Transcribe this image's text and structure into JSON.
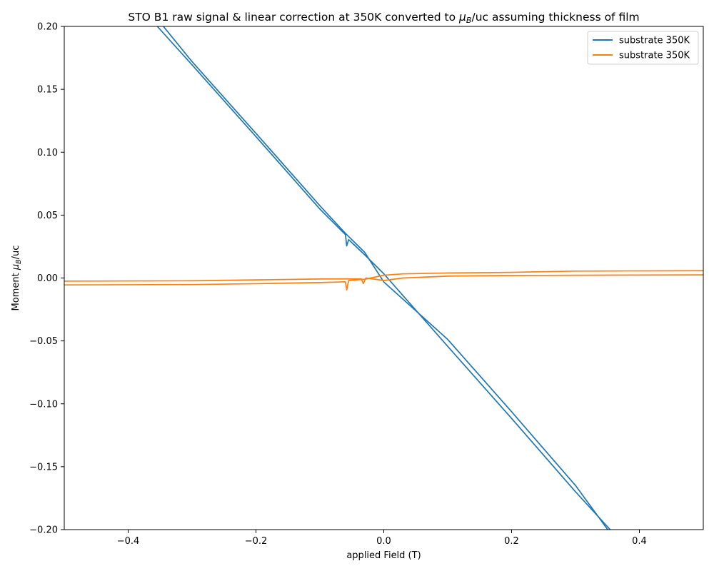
{
  "chart_data": {
    "type": "line",
    "title_prefix": "STO B1 raw signal & linear correction at 350K converted to ",
    "title_mu": "μ",
    "title_sub": "B",
    "title_suffix": "/uc assuming thickness of film",
    "xlabel": "applied Field (T)",
    "ylabel_prefix": "Moment ",
    "ylabel_mu": "μ",
    "ylabel_sub": "B",
    "ylabel_suffix": "/uc",
    "xlim": [
      -0.5,
      0.5
    ],
    "ylim": [
      -0.2,
      0.2
    ],
    "xticks": [
      -0.4,
      -0.2,
      0.0,
      0.2,
      0.4
    ],
    "xtick_labels": [
      "−0.4",
      "−0.2",
      "0.0",
      "0.2",
      "0.4"
    ],
    "yticks": [
      -0.2,
      -0.15,
      -0.1,
      -0.05,
      0.0,
      0.05,
      0.1,
      0.15,
      0.2
    ],
    "ytick_labels": [
      "−0.20",
      "−0.15",
      "−0.10",
      "−0.05",
      "0.00",
      "0.05",
      "0.10",
      "0.15",
      "0.20"
    ],
    "grid": false,
    "legend_position": "top-right",
    "series": [
      {
        "name": "substrate 350K",
        "color": "#1f77b4",
        "branches": [
          [
            [
              -0.36,
              0.2032
            ],
            [
              -0.3,
              0.1694
            ],
            [
              -0.2,
              0.1124
            ],
            [
              -0.1,
              0.0548
            ],
            [
              -0.06,
              0.0345
            ],
            [
              -0.058,
              0.0255
            ],
            [
              -0.055,
              0.0305
            ],
            [
              -0.03,
              0.0185
            ],
            [
              0.0,
              0.0034
            ],
            [
              0.1,
              -0.0543
            ],
            [
              0.2,
              -0.1116
            ],
            [
              0.3,
              -0.1699
            ],
            [
              0.36,
              -0.2032
            ]
          ],
          [
            [
              -0.35,
              0.2032
            ],
            [
              -0.3,
              0.172
            ],
            [
              -0.2,
              0.115
            ],
            [
              -0.1,
              0.0575
            ],
            [
              -0.06,
              0.0355
            ],
            [
              -0.03,
              0.0205
            ],
            [
              0.0,
              -0.0031
            ],
            [
              0.1,
              -0.0488
            ],
            [
              0.2,
              -0.1063
            ],
            [
              0.3,
              -0.1649
            ],
            [
              0.355,
              -0.2032
            ]
          ]
        ]
      },
      {
        "name": "substrate 350K",
        "color": "#ff7f0e",
        "branches": [
          [
            [
              -0.5,
              -0.0055
            ],
            [
              -0.3,
              -0.0052
            ],
            [
              -0.2,
              -0.0045
            ],
            [
              -0.1,
              -0.0036
            ],
            [
              -0.06,
              -0.003
            ],
            [
              -0.058,
              -0.0095
            ],
            [
              -0.055,
              -0.002
            ],
            [
              -0.03,
              -0.001
            ],
            [
              0.0,
              0.0022
            ],
            [
              0.03,
              0.0033
            ],
            [
              0.1,
              0.004
            ],
            [
              0.2,
              0.0045
            ],
            [
              0.3,
              0.0055
            ],
            [
              0.5,
              0.0058
            ]
          ],
          [
            [
              -0.5,
              -0.0025
            ],
            [
              -0.3,
              -0.0022
            ],
            [
              -0.2,
              -0.0015
            ],
            [
              -0.1,
              -0.0008
            ],
            [
              -0.06,
              -0.0007
            ],
            [
              -0.035,
              -0.0008
            ],
            [
              -0.032,
              -0.0045
            ],
            [
              -0.028,
              0.0
            ],
            [
              0.0,
              -0.002
            ],
            [
              0.03,
              0.0
            ],
            [
              0.1,
              0.0015
            ],
            [
              0.2,
              0.002
            ],
            [
              0.3,
              0.0022
            ],
            [
              0.5,
              0.0025
            ]
          ]
        ]
      }
    ]
  }
}
